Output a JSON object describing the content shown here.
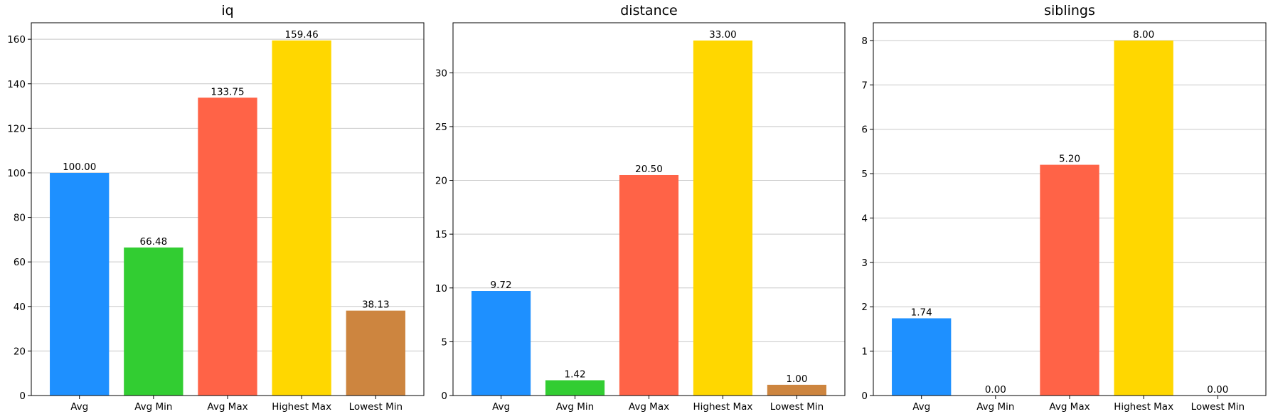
{
  "chart_data": [
    {
      "type": "bar",
      "title": "iq",
      "categories": [
        "Avg",
        "Avg Min",
        "Avg Max",
        "Highest Max",
        "Lowest Min"
      ],
      "values": [
        100.0,
        66.48,
        133.75,
        159.46,
        38.13
      ],
      "value_labels": [
        "100.00",
        "66.48",
        "133.75",
        "159.46",
        "38.13"
      ],
      "colors": [
        "#1E90FF",
        "#32CD32",
        "#FF6347",
        "#FFD700",
        "#CD853F"
      ],
      "ylim": [
        0,
        167.4
      ],
      "yticks": [
        0,
        20,
        40,
        60,
        80,
        100,
        120,
        140,
        160
      ],
      "xlabel": "",
      "ylabel": "",
      "grid": "y"
    },
    {
      "type": "bar",
      "title": "distance",
      "categories": [
        "Avg",
        "Avg Min",
        "Avg Max",
        "Highest Max",
        "Lowest Min"
      ],
      "values": [
        9.72,
        1.42,
        20.5,
        33.0,
        1.0
      ],
      "value_labels": [
        "9.72",
        "1.42",
        "20.50",
        "33.00",
        "1.00"
      ],
      "colors": [
        "#1E90FF",
        "#32CD32",
        "#FF6347",
        "#FFD700",
        "#CD853F"
      ],
      "ylim": [
        0,
        34.65
      ],
      "yticks": [
        0,
        5,
        10,
        15,
        20,
        25,
        30
      ],
      "xlabel": "",
      "ylabel": "",
      "grid": "y"
    },
    {
      "type": "bar",
      "title": "siblings",
      "categories": [
        "Avg",
        "Avg Min",
        "Avg Max",
        "Highest Max",
        "Lowest Min"
      ],
      "values": [
        1.74,
        0.0,
        5.2,
        8.0,
        0.0
      ],
      "value_labels": [
        "1.74",
        "0.00",
        "5.20",
        "8.00",
        "0.00"
      ],
      "colors": [
        "#1E90FF",
        "#32CD32",
        "#FF6347",
        "#FFD700",
        "#CD853F"
      ],
      "ylim": [
        0,
        8.4
      ],
      "yticks": [
        0,
        1,
        2,
        3,
        4,
        5,
        6,
        7,
        8
      ],
      "xlabel": "",
      "ylabel": "",
      "grid": "y"
    }
  ]
}
